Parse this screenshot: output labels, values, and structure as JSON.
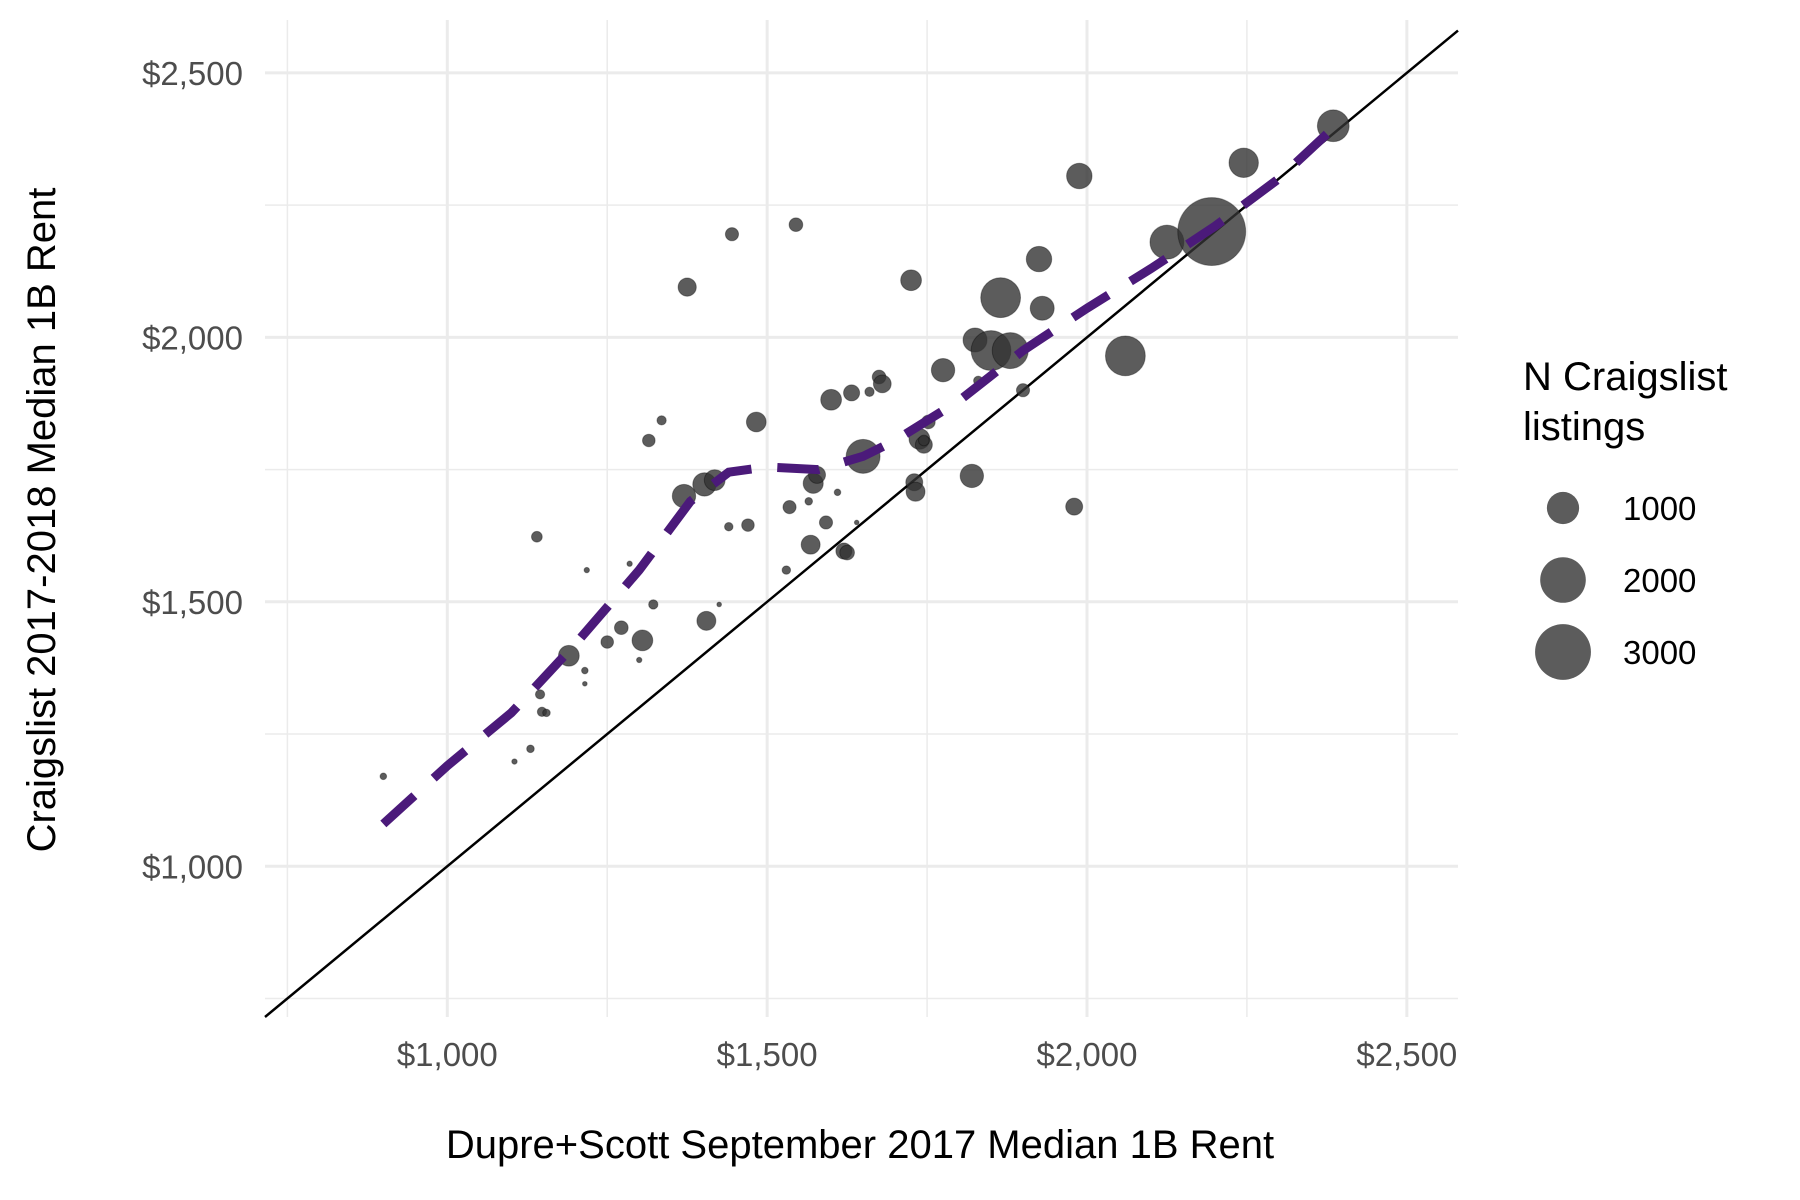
{
  "chart_data": {
    "type": "scatter",
    "xlabel": "Dupre+Scott September 2017 Median 1B Rent",
    "ylabel": "Craigslist 2017-2018 Median 1B Rent",
    "xlim": [
      715,
      2580
    ],
    "ylim": [
      715,
      2600
    ],
    "x_ticks": [
      1000,
      1500,
      2000,
      2500
    ],
    "x_tick_labels": [
      "$1,000",
      "$1,500",
      "$2,000",
      "$2,500"
    ],
    "y_ticks": [
      1000,
      1500,
      2000,
      2500
    ],
    "y_tick_labels": [
      "$1,000",
      "$1,500",
      "$2,000",
      "$2,500"
    ],
    "grid": true,
    "legend": {
      "title": [
        "N Craigslist",
        "listings"
      ],
      "position": "right",
      "entries": [
        {
          "label": "1000",
          "value": 1000
        },
        {
          "label": "2000",
          "value": 2000
        },
        {
          "label": "3000",
          "value": 3000
        }
      ]
    },
    "reference_line": {
      "type": "identity",
      "color": "#000000"
    },
    "smooth_line": {
      "color": "#4b1a7a",
      "style": "dashed",
      "points": [
        [
          900,
          1080
        ],
        [
          1000,
          1190
        ],
        [
          1100,
          1290
        ],
        [
          1200,
          1420
        ],
        [
          1300,
          1560
        ],
        [
          1380,
          1690
        ],
        [
          1440,
          1745
        ],
        [
          1500,
          1755
        ],
        [
          1580,
          1750
        ],
        [
          1650,
          1775
        ],
        [
          1700,
          1805
        ],
        [
          1800,
          1880
        ],
        [
          1900,
          1975
        ],
        [
          2000,
          2055
        ],
        [
          2100,
          2130
        ],
        [
          2200,
          2210
        ],
        [
          2300,
          2300
        ],
        [
          2380,
          2390
        ]
      ]
    },
    "points_color": "#333333",
    "points": [
      {
        "x": 900,
        "y": 1170,
        "n": 30
      },
      {
        "x": 1105,
        "y": 1198,
        "n": 20
      },
      {
        "x": 1130,
        "y": 1222,
        "n": 40
      },
      {
        "x": 1140,
        "y": 1623,
        "n": 80
      },
      {
        "x": 1145,
        "y": 1325,
        "n": 60
      },
      {
        "x": 1148,
        "y": 1292,
        "n": 60
      },
      {
        "x": 1155,
        "y": 1290,
        "n": 40
      },
      {
        "x": 1190,
        "y": 1398,
        "n": 300
      },
      {
        "x": 1215,
        "y": 1345,
        "n": 15
      },
      {
        "x": 1215,
        "y": 1370,
        "n": 30
      },
      {
        "x": 1218,
        "y": 1560,
        "n": 20
      },
      {
        "x": 1250,
        "y": 1424,
        "n": 110
      },
      {
        "x": 1272,
        "y": 1451,
        "n": 130
      },
      {
        "x": 1285,
        "y": 1572,
        "n": 20
      },
      {
        "x": 1300,
        "y": 1390,
        "n": 20
      },
      {
        "x": 1305,
        "y": 1427,
        "n": 300
      },
      {
        "x": 1315,
        "y": 1805,
        "n": 110
      },
      {
        "x": 1322,
        "y": 1495,
        "n": 60
      },
      {
        "x": 1335,
        "y": 1843,
        "n": 60
      },
      {
        "x": 1370,
        "y": 1700,
        "n": 380
      },
      {
        "x": 1375,
        "y": 2095,
        "n": 230
      },
      {
        "x": 1402,
        "y": 1722,
        "n": 380
      },
      {
        "x": 1405,
        "y": 1464,
        "n": 250
      },
      {
        "x": 1418,
        "y": 1730,
        "n": 300
      },
      {
        "x": 1425,
        "y": 1495,
        "n": 15
      },
      {
        "x": 1440,
        "y": 1642,
        "n": 50
      },
      {
        "x": 1445,
        "y": 2195,
        "n": 120
      },
      {
        "x": 1470,
        "y": 1645,
        "n": 110
      },
      {
        "x": 1483,
        "y": 1840,
        "n": 270
      },
      {
        "x": 1530,
        "y": 1560,
        "n": 50
      },
      {
        "x": 1535,
        "y": 1679,
        "n": 120
      },
      {
        "x": 1545,
        "y": 2213,
        "n": 130
      },
      {
        "x": 1565,
        "y": 1690,
        "n": 40
      },
      {
        "x": 1568,
        "y": 1608,
        "n": 250
      },
      {
        "x": 1572,
        "y": 1724,
        "n": 280
      },
      {
        "x": 1578,
        "y": 1740,
        "n": 200
      },
      {
        "x": 1592,
        "y": 1650,
        "n": 120
      },
      {
        "x": 1600,
        "y": 1882,
        "n": 300
      },
      {
        "x": 1610,
        "y": 1707,
        "n": 30
      },
      {
        "x": 1620,
        "y": 1596,
        "n": 180
      },
      {
        "x": 1625,
        "y": 1593,
        "n": 150
      },
      {
        "x": 1632,
        "y": 1895,
        "n": 180
      },
      {
        "x": 1640,
        "y": 1650,
        "n": 15
      },
      {
        "x": 1650,
        "y": 1775,
        "n": 800
      },
      {
        "x": 1660,
        "y": 1897,
        "n": 60
      },
      {
        "x": 1675,
        "y": 1925,
        "n": 130
      },
      {
        "x": 1680,
        "y": 1912,
        "n": 220
      },
      {
        "x": 1725,
        "y": 2108,
        "n": 300
      },
      {
        "x": 1730,
        "y": 1726,
        "n": 200
      },
      {
        "x": 1732,
        "y": 1708,
        "n": 250
      },
      {
        "x": 1738,
        "y": 1808,
        "n": 300
      },
      {
        "x": 1745,
        "y": 1797,
        "n": 200
      },
      {
        "x": 1745,
        "y": 1805,
        "n": 80
      },
      {
        "x": 1752,
        "y": 1840,
        "n": 130
      },
      {
        "x": 1775,
        "y": 1938,
        "n": 380
      },
      {
        "x": 1820,
        "y": 1738,
        "n": 380
      },
      {
        "x": 1825,
        "y": 1995,
        "n": 400
      },
      {
        "x": 1830,
        "y": 1918,
        "n": 60
      },
      {
        "x": 1850,
        "y": 1975,
        "n": 1100
      },
      {
        "x": 1865,
        "y": 2075,
        "n": 1100
      },
      {
        "x": 1880,
        "y": 1975,
        "n": 900
      },
      {
        "x": 1900,
        "y": 1900,
        "n": 120
      },
      {
        "x": 1925,
        "y": 2148,
        "n": 450
      },
      {
        "x": 1930,
        "y": 2055,
        "n": 400
      },
      {
        "x": 1980,
        "y": 1680,
        "n": 200
      },
      {
        "x": 1988,
        "y": 2305,
        "n": 450
      },
      {
        "x": 2060,
        "y": 1965,
        "n": 1100
      },
      {
        "x": 2125,
        "y": 2180,
        "n": 800
      },
      {
        "x": 2195,
        "y": 2200,
        "n": 3200
      },
      {
        "x": 2245,
        "y": 2330,
        "n": 600
      },
      {
        "x": 2385,
        "y": 2400,
        "n": 700
      }
    ]
  }
}
